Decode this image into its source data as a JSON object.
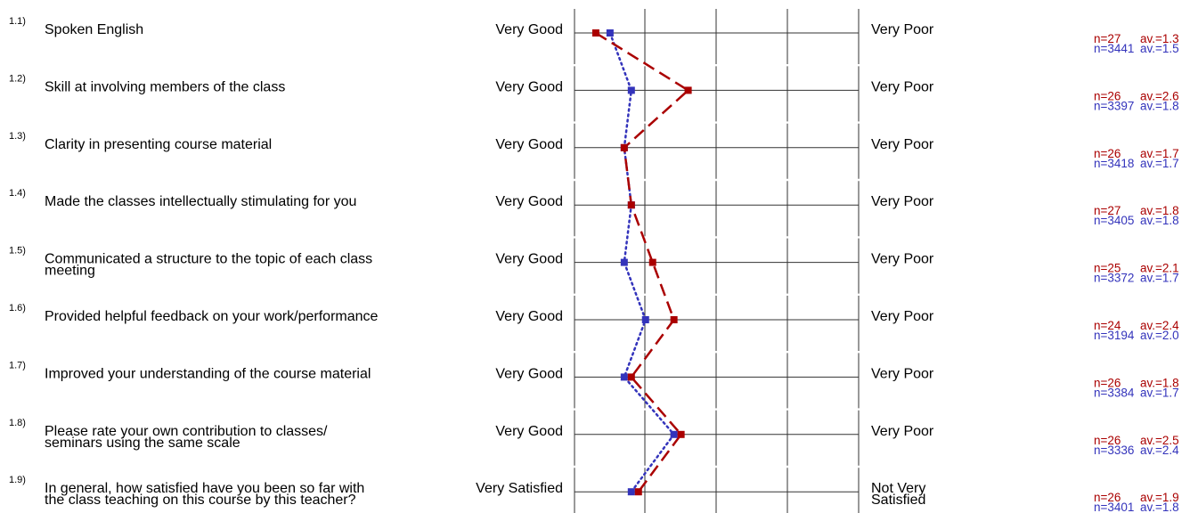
{
  "colors": {
    "course": "#aa0000",
    "reference": "#3333bb",
    "grid": "#333333"
  },
  "chart_data": {
    "type": "line",
    "scale_min": 1,
    "scale_max": 5,
    "items": [
      {
        "num": "1.1)",
        "question": [
          "Spoken English"
        ],
        "left_pole": [
          "Very Good"
        ],
        "right_pole": [
          "Very Poor"
        ],
        "course": {
          "n": "n=27",
          "av": "av.=1.3",
          "value": 1.3
        },
        "reference": {
          "n": "n=3441",
          "av": "av.=1.5",
          "value": 1.5
        }
      },
      {
        "num": "1.2)",
        "question": [
          "Skill at involving members of the class"
        ],
        "left_pole": [
          "Very Good"
        ],
        "right_pole": [
          "Very Poor"
        ],
        "course": {
          "n": "n=26",
          "av": "av.=2.6",
          "value": 2.6
        },
        "reference": {
          "n": "n=3397",
          "av": "av.=1.8",
          "value": 1.8
        }
      },
      {
        "num": "1.3)",
        "question": [
          "Clarity in presenting course material"
        ],
        "left_pole": [
          "Very Good"
        ],
        "right_pole": [
          "Very Poor"
        ],
        "course": {
          "n": "n=26",
          "av": "av.=1.7",
          "value": 1.7
        },
        "reference": {
          "n": "n=3418",
          "av": "av.=1.7",
          "value": 1.7
        }
      },
      {
        "num": "1.4)",
        "question": [
          "Made the classes intellectually stimulating for you"
        ],
        "left_pole": [
          "Very Good"
        ],
        "right_pole": [
          "Very Poor"
        ],
        "course": {
          "n": "n=27",
          "av": "av.=1.8",
          "value": 1.8
        },
        "reference": {
          "n": "n=3405",
          "av": "av.=1.8",
          "value": 1.8
        }
      },
      {
        "num": "1.5)",
        "question": [
          "Communicated a structure to the topic of each class",
          "meeting"
        ],
        "left_pole": [
          "Very Good"
        ],
        "right_pole": [
          "Very Poor"
        ],
        "course": {
          "n": "n=25",
          "av": "av.=2.1",
          "value": 2.1
        },
        "reference": {
          "n": "n=3372",
          "av": "av.=1.7",
          "value": 1.7
        }
      },
      {
        "num": "1.6)",
        "question": [
          "Provided helpful feedback on your work/performance"
        ],
        "left_pole": [
          "Very Good"
        ],
        "right_pole": [
          "Very Poor"
        ],
        "course": {
          "n": "n=24",
          "av": "av.=2.4",
          "value": 2.4
        },
        "reference": {
          "n": "n=3194",
          "av": "av.=2.0",
          "value": 2.0
        }
      },
      {
        "num": "1.7)",
        "question": [
          "Improved your understanding of the course material"
        ],
        "left_pole": [
          "Very Good"
        ],
        "right_pole": [
          "Very Poor"
        ],
        "course": {
          "n": "n=26",
          "av": "av.=1.8",
          "value": 1.8
        },
        "reference": {
          "n": "n=3384",
          "av": "av.=1.7",
          "value": 1.7
        }
      },
      {
        "num": "1.8)",
        "question": [
          "Please rate your own contribution to classes/",
          "seminars using the same scale"
        ],
        "left_pole": [
          "Very Good"
        ],
        "right_pole": [
          "Very Poor"
        ],
        "course": {
          "n": "n=26",
          "av": "av.=2.5",
          "value": 2.5
        },
        "reference": {
          "n": "n=3336",
          "av": "av.=2.4",
          "value": 2.4
        }
      },
      {
        "num": "1.9)",
        "question": [
          "In general, how satisfied have you been so far with",
          "the class teaching on this course by this teacher?"
        ],
        "left_pole": [
          "Very Satisfied"
        ],
        "right_pole": [
          "Not Very",
          "Satisfied"
        ],
        "course": {
          "n": "n=26",
          "av": "av.=1.9",
          "value": 1.9
        },
        "reference": {
          "n": "n=3401",
          "av": "av.=1.8",
          "value": 1.8
        }
      }
    ]
  }
}
